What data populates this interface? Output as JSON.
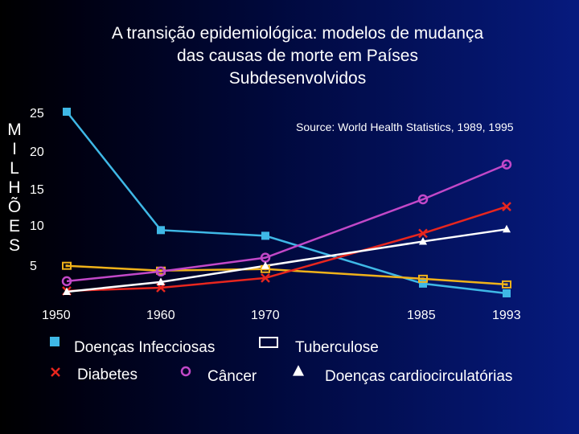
{
  "title_lines": [
    "A transição epidemiológica: modelos de mudança",
    "das causas de morte em Países",
    "Subdesenvolvidos"
  ],
  "source": "Source: World Health Statistics, 1989, 1995",
  "ylabel_letters": [
    "M",
    "I",
    "L",
    "H",
    "Õ",
    "E",
    "S"
  ],
  "chart_data": {
    "type": "line",
    "title": "A transição epidemiológica: modelos de mudança das causas de morte em Países Subdesenvolvidos",
    "ylabel": "MILHÕES",
    "xlabel": "",
    "x": [
      1950,
      1960,
      1970,
      1985,
      1993
    ],
    "x_tick_labels": [
      "1950",
      "1960",
      "1970",
      "1985",
      "1993"
    ],
    "y_ticks": [
      5,
      10,
      15,
      20,
      25
    ],
    "y_tick_labels": [
      "5",
      "10",
      "15",
      "20",
      "25"
    ],
    "ylim": [
      2.5,
      25
    ],
    "grid": false,
    "legend_position": "bottom",
    "series": [
      {
        "name": "Doenças Infecciosas",
        "marker": "square",
        "color": "#3fb8e6",
        "values": [
          24.8,
          10.2,
          9.5,
          3.6,
          2.4
        ]
      },
      {
        "name": "Tuberculose",
        "marker": "open-square",
        "color": "#f0b21a",
        "values": [
          5.8,
          5.2,
          5.4,
          4.2,
          3.5
        ]
      },
      {
        "name": "Diabetes",
        "marker": "x",
        "color": "#e8261e",
        "values": [
          2.7,
          3.1,
          4.3,
          9.8,
          13.1
        ]
      },
      {
        "name": "Câncer",
        "marker": "circle",
        "color": "#c248c8",
        "values": [
          3.9,
          5.1,
          6.8,
          14.0,
          18.3
        ]
      },
      {
        "name": "Doenças cardiocirculatórias",
        "marker": "triangle",
        "color": "#ffffff",
        "values": [
          2.6,
          3.8,
          5.8,
          8.8,
          10.3
        ]
      }
    ]
  },
  "legend": [
    {
      "label": "Doenças Infecciosas",
      "marker": "square",
      "color": "#3fb8e6"
    },
    {
      "label": "Tuberculose",
      "marker": "open-square",
      "color": "#ffffff"
    },
    {
      "label": "Diabetes",
      "marker": "x",
      "color": "#e8261e"
    },
    {
      "label": "Câncer",
      "marker": "circle",
      "color": "#c248c8"
    },
    {
      "label": "Doenças cardiocirculatórias",
      "marker": "triangle",
      "color": "#ffffff"
    }
  ]
}
